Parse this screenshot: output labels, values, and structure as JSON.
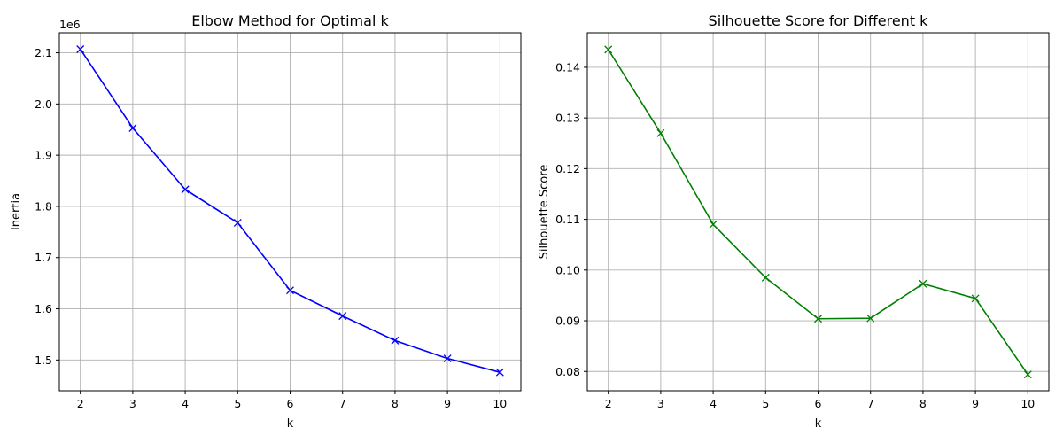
{
  "chart_data": [
    {
      "type": "line",
      "title": "Elbow Method for Optimal k",
      "xlabel": "k",
      "ylabel": "Inertia",
      "offset_label": "1e6",
      "x": [
        2,
        3,
        4,
        5,
        6,
        7,
        8,
        9,
        10
      ],
      "series": [
        {
          "name": "Inertia",
          "color": "#0000ff",
          "marker": "x",
          "values": [
            2.107,
            1.953,
            1.833,
            1.768,
            1.636,
            1.586,
            1.538,
            1.503,
            1.476
          ]
        }
      ],
      "xlim": [
        1.6,
        10.4
      ],
      "ylim": [
        1.44,
        2.139
      ],
      "xticks": [
        2,
        3,
        4,
        5,
        6,
        7,
        8,
        9,
        10
      ],
      "yticks": [
        1.5,
        1.6,
        1.7,
        1.8,
        1.9,
        2.0,
        2.1
      ],
      "ytick_labels": [
        "1.5",
        "1.6",
        "1.7",
        "1.8",
        "1.9",
        "2.0",
        "2.1"
      ],
      "grid": true
    },
    {
      "type": "line",
      "title": "Silhouette Score for Different k",
      "xlabel": "k",
      "ylabel": "Silhouette Score",
      "x": [
        2,
        3,
        4,
        5,
        6,
        7,
        8,
        9,
        10
      ],
      "series": [
        {
          "name": "Silhouette Score",
          "color": "#008000",
          "marker": "x",
          "values": [
            0.1435,
            0.127,
            0.109,
            0.0985,
            0.0904,
            0.0905,
            0.0973,
            0.0944,
            0.0794
          ]
        }
      ],
      "xlim": [
        1.6,
        10.4
      ],
      "ylim": [
        0.0762,
        0.1468
      ],
      "xticks": [
        2,
        3,
        4,
        5,
        6,
        7,
        8,
        9,
        10
      ],
      "yticks": [
        0.08,
        0.09,
        0.1,
        0.11,
        0.12,
        0.13,
        0.14
      ],
      "ytick_labels": [
        "0.08",
        "0.09",
        "0.10",
        "0.11",
        "0.12",
        "0.13",
        "0.14"
      ],
      "grid": true
    }
  ]
}
